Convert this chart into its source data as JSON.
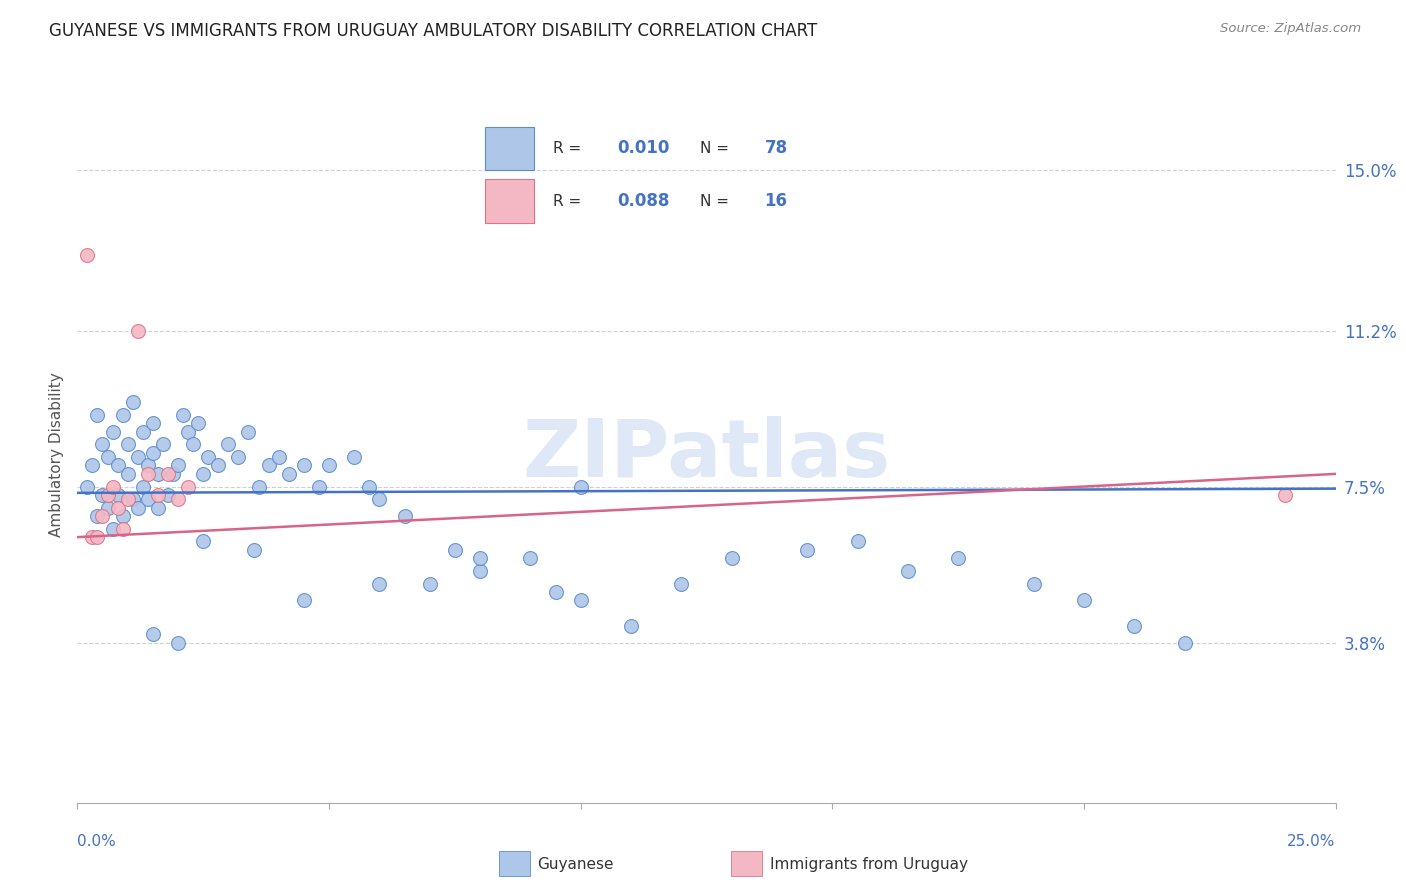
{
  "title": "GUYANESE VS IMMIGRANTS FROM URUGUAY AMBULATORY DISABILITY CORRELATION CHART",
  "source": "Source: ZipAtlas.com",
  "ylabel": "Ambulatory Disability",
  "ytick_labels": [
    "15.0%",
    "11.2%",
    "7.5%",
    "3.8%"
  ],
  "ytick_values": [
    0.15,
    0.112,
    0.075,
    0.038
  ],
  "blue_color": "#aec6e8",
  "pink_color": "#f4b8c4",
  "blue_edge_color": "#5b8ecf",
  "pink_edge_color": "#d9748a",
  "blue_line_color": "#4472c4",
  "pink_line_color": "#d9648a",
  "legend_text_color": "#333333",
  "legend_value_color": "#4472c4",
  "watermark": "ZIPatlas",
  "watermark_color": "#c8daf0",
  "blue_scatter_x": [
    0.002,
    0.003,
    0.004,
    0.004,
    0.005,
    0.005,
    0.006,
    0.006,
    0.007,
    0.007,
    0.008,
    0.008,
    0.009,
    0.009,
    0.01,
    0.01,
    0.011,
    0.011,
    0.012,
    0.012,
    0.013,
    0.013,
    0.014,
    0.014,
    0.015,
    0.015,
    0.016,
    0.016,
    0.017,
    0.018,
    0.019,
    0.02,
    0.021,
    0.022,
    0.023,
    0.024,
    0.025,
    0.026,
    0.028,
    0.03,
    0.032,
    0.034,
    0.036,
    0.038,
    0.04,
    0.042,
    0.045,
    0.048,
    0.05,
    0.055,
    0.058,
    0.06,
    0.065,
    0.07,
    0.075,
    0.08,
    0.09,
    0.095,
    0.1,
    0.11,
    0.12,
    0.13,
    0.145,
    0.155,
    0.165,
    0.175,
    0.19,
    0.2,
    0.21,
    0.22,
    0.015,
    0.02,
    0.025,
    0.035,
    0.045,
    0.06,
    0.08,
    0.1
  ],
  "blue_scatter_y": [
    0.075,
    0.08,
    0.092,
    0.068,
    0.085,
    0.073,
    0.082,
    0.07,
    0.088,
    0.065,
    0.08,
    0.073,
    0.092,
    0.068,
    0.085,
    0.078,
    0.095,
    0.072,
    0.082,
    0.07,
    0.088,
    0.075,
    0.08,
    0.072,
    0.09,
    0.083,
    0.078,
    0.07,
    0.085,
    0.073,
    0.078,
    0.08,
    0.092,
    0.088,
    0.085,
    0.09,
    0.078,
    0.082,
    0.08,
    0.085,
    0.082,
    0.088,
    0.075,
    0.08,
    0.082,
    0.078,
    0.08,
    0.075,
    0.08,
    0.082,
    0.075,
    0.072,
    0.068,
    0.052,
    0.06,
    0.055,
    0.058,
    0.05,
    0.048,
    0.042,
    0.052,
    0.058,
    0.06,
    0.062,
    0.055,
    0.058,
    0.052,
    0.048,
    0.042,
    0.038,
    0.04,
    0.038,
    0.062,
    0.06,
    0.048,
    0.052,
    0.058,
    0.075
  ],
  "pink_scatter_x": [
    0.002,
    0.003,
    0.004,
    0.005,
    0.006,
    0.007,
    0.008,
    0.009,
    0.01,
    0.012,
    0.014,
    0.016,
    0.018,
    0.02,
    0.022,
    0.24
  ],
  "pink_scatter_y": [
    0.13,
    0.063,
    0.063,
    0.068,
    0.073,
    0.075,
    0.07,
    0.065,
    0.072,
    0.112,
    0.078,
    0.073,
    0.078,
    0.072,
    0.075,
    0.073
  ],
  "blue_line_x": [
    0.0,
    0.25
  ],
  "blue_line_y": [
    0.0735,
    0.0745
  ],
  "pink_line_x": [
    0.0,
    0.25
  ],
  "pink_line_y": [
    0.063,
    0.078
  ],
  "xlim": [
    0.0,
    0.25
  ],
  "ylim": [
    0.0,
    0.165
  ],
  "grid_color": "#d0d0d0",
  "title_fontsize": 12,
  "axis_label_color": "#555555"
}
